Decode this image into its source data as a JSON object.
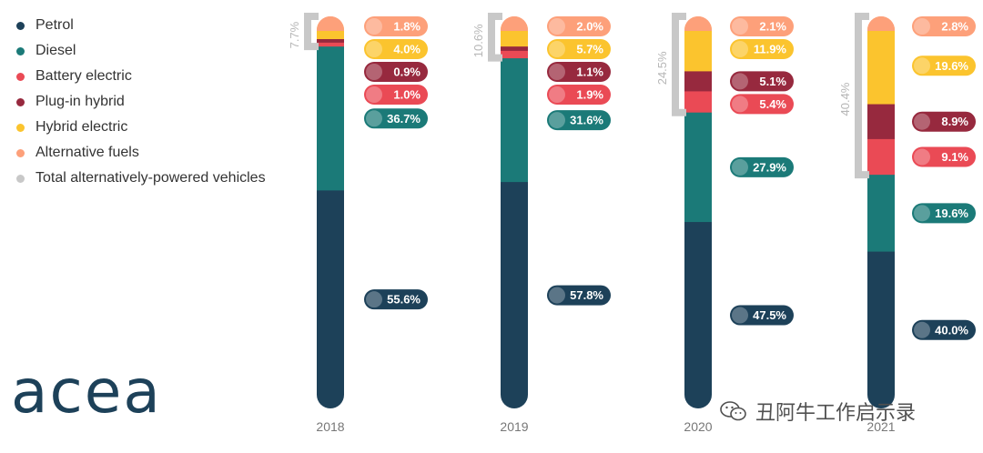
{
  "legend": [
    {
      "label": "Petrol",
      "color": "#1d4159"
    },
    {
      "label": "Diesel",
      "color": "#1b7a78"
    },
    {
      "label": "Battery electric",
      "color": "#ea4a55"
    },
    {
      "label": "Plug-in hybrid",
      "color": "#97293e"
    },
    {
      "label": "Hybrid electric",
      "color": "#fbc42e"
    },
    {
      "label": "Alternative fuels",
      "color": "#fda07a"
    },
    {
      "label": "Total alternatively-powered vehicles",
      "color": "#c8c8c8"
    }
  ],
  "logo_text": "acea",
  "watermark_text": "丑阿牛工作启示录",
  "chart_data": {
    "type": "bar",
    "stacked": true,
    "normalized_percent": true,
    "categories": [
      "2018",
      "2019",
      "2020",
      "2021"
    ],
    "series": [
      {
        "name": "Petrol",
        "color": "#1d4159",
        "values": [
          55.6,
          57.8,
          47.5,
          40.0
        ],
        "labels": [
          "55.6%",
          "57.8%",
          "47.5%",
          "40.0%"
        ]
      },
      {
        "name": "Diesel",
        "color": "#1b7a78",
        "values": [
          36.7,
          31.6,
          27.9,
          19.6
        ],
        "labels": [
          "36.7%",
          "31.6%",
          "27.9%",
          "19.6%"
        ]
      },
      {
        "name": "Battery electric",
        "color": "#ea4a55",
        "values": [
          1.0,
          1.9,
          5.4,
          9.1
        ],
        "labels": [
          "1.0%",
          "1.9%",
          "5.4%",
          "9.1%"
        ]
      },
      {
        "name": "Plug-in hybrid",
        "color": "#97293e",
        "values": [
          0.9,
          1.1,
          5.1,
          8.9
        ],
        "labels": [
          "0.9%",
          "1.1%",
          "5.1%",
          "8.9%"
        ]
      },
      {
        "name": "Hybrid electric",
        "color": "#fbc42e",
        "values": [
          4.0,
          5.7,
          11.9,
          19.6
        ],
        "labels": [
          "4.0%",
          "5.7%",
          "11.9%",
          "19.6%"
        ]
      },
      {
        "name": "Alternative fuels",
        "color": "#fda07a",
        "values": [
          1.8,
          2.0,
          2.1,
          2.8
        ],
        "labels": [
          "1.8%",
          "2.0%",
          "2.1%",
          "2.8%"
        ]
      }
    ],
    "total_alternatively_powered": {
      "name": "Total alternatively-powered vehicles",
      "color": "#c8c8c8",
      "values": [
        7.7,
        10.6,
        24.5,
        40.4
      ],
      "labels": [
        "7.7%",
        "10.6%",
        "24.5%",
        "40.4%"
      ]
    },
    "legend_position": "top-left",
    "grid": false
  }
}
